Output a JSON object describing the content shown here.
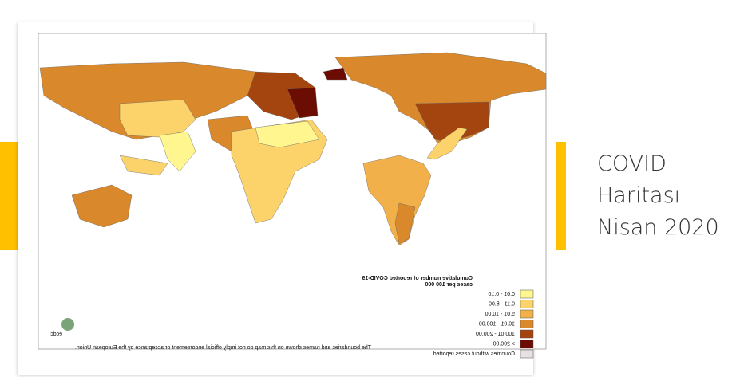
{
  "slide": {
    "title_lines": [
      "COVID",
      "Haritası",
      "Nisan 2020"
    ]
  },
  "map": {
    "legend": {
      "title_lines": [
        "Cumulative number of reported COVID-19",
        "cases per 100 000"
      ],
      "items": [
        {
          "label": "0.01 - 0.10",
          "color": "#fff68f"
        },
        {
          "label": "0.11 - 5.00",
          "color": "#fbd36a"
        },
        {
          "label": "5.01 - 10.00",
          "color": "#f2b04a"
        },
        {
          "label": "10.01 - 100.00",
          "color": "#d9882b"
        },
        {
          "label": "100.01 - 200.00",
          "color": "#a4450f"
        },
        {
          "label": "> 200.00",
          "color": "#6b0d02"
        },
        {
          "label": "Countries without cases reported",
          "color": "#e8e0e0"
        }
      ]
    },
    "disclaimer": "The boundaries and names shown on this map do not imply official endorsement or acceptance by the European Union.",
    "logo": "ecdc"
  }
}
